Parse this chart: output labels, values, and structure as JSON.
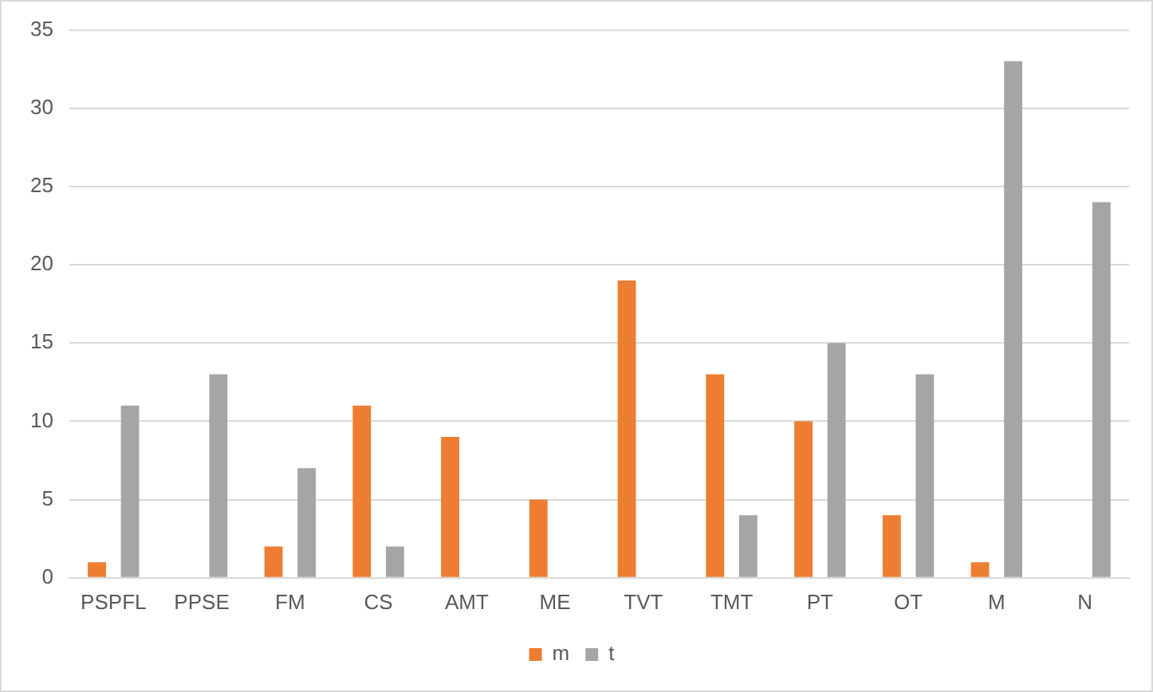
{
  "chart_data": {
    "type": "bar",
    "categories": [
      "PSPFL",
      "PPSE",
      "FM",
      "CS",
      "AMT",
      "ME",
      "TVT",
      "TMT",
      "PT",
      "OT",
      "M",
      "N"
    ],
    "series": [
      {
        "name": "m",
        "color": "#ed7d31",
        "values": [
          1,
          0,
          2,
          11,
          9,
          5,
          19,
          13,
          10,
          4,
          1,
          0
        ]
      },
      {
        "name": "t",
        "color": "#a5a5a5",
        "values": [
          11,
          13,
          7,
          2,
          0,
          0,
          0,
          4,
          15,
          13,
          33,
          24
        ]
      }
    ],
    "ylim": [
      0,
      35
    ],
    "yticks": [
      0,
      5,
      10,
      15,
      20,
      25,
      30,
      35
    ],
    "grid": "y",
    "legend": "bottom"
  }
}
